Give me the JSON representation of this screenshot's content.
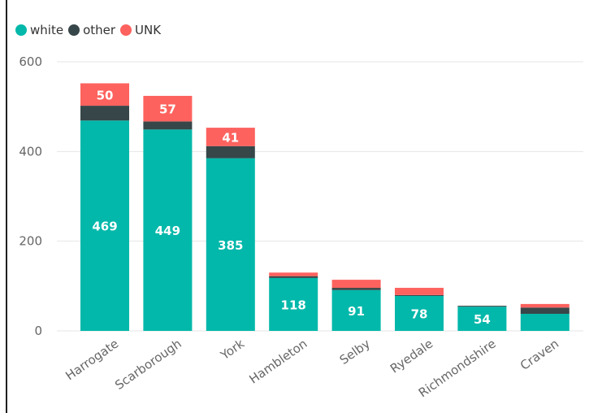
{
  "chart_data": {
    "type": "bar",
    "stacked": true,
    "title": "",
    "xlabel": "",
    "ylabel": "",
    "ylim": [
      0,
      600
    ],
    "yticks": [
      0,
      200,
      400,
      600
    ],
    "grid": true,
    "legend_position": "top-left",
    "categories": [
      "Harrogate",
      "Scarborough",
      "York",
      "Hambleton",
      "Selby",
      "Ryedale",
      "Richmondshire",
      "Craven"
    ],
    "series": [
      {
        "name": "white",
        "color": "#01B8AA",
        "values": [
          469,
          449,
          385,
          118,
          91,
          78,
          54,
          38
        ],
        "labels": [
          "469",
          "449",
          "385",
          "118",
          "91",
          "78",
          "54",
          ""
        ]
      },
      {
        "name": "other",
        "color": "#374649",
        "values": [
          33,
          18,
          27,
          4,
          5,
          2,
          2,
          14
        ],
        "labels": [
          "",
          "",
          "",
          "",
          "",
          "",
          "",
          ""
        ]
      },
      {
        "name": "UNK",
        "color": "#FD625E",
        "values": [
          50,
          57,
          41,
          8,
          18,
          16,
          0,
          8
        ],
        "labels": [
          "50",
          "57",
          "41",
          "",
          "",
          "",
          "",
          ""
        ]
      }
    ]
  }
}
